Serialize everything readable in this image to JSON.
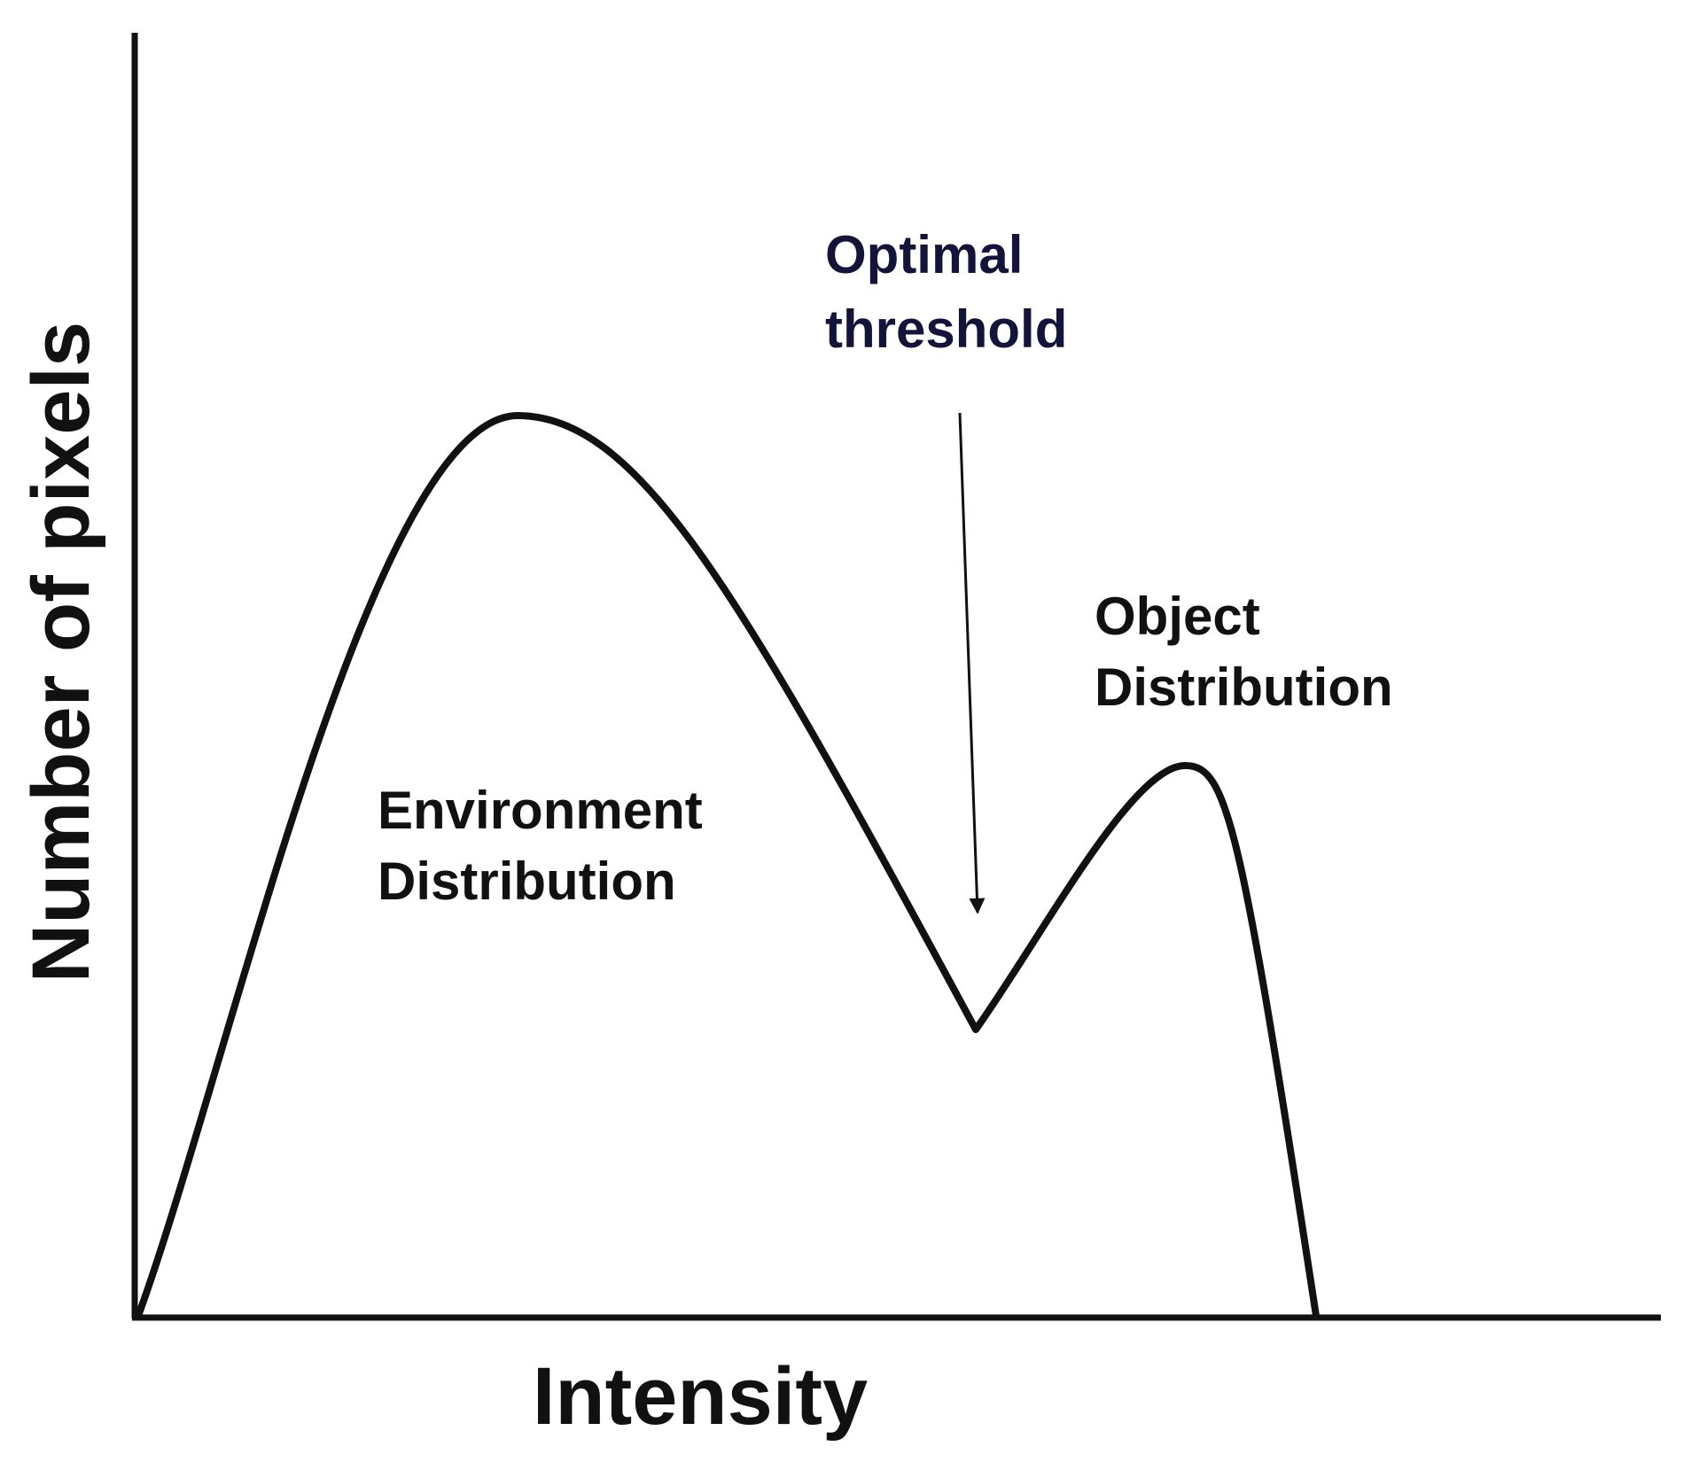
{
  "axes": {
    "y_label": "Number of pixels",
    "x_label": "Intensity"
  },
  "annotations": {
    "threshold": [
      "Optimal",
      "threshold"
    ],
    "object": [
      "Object",
      "Distribution"
    ],
    "environment": [
      "Environment",
      "Distribution"
    ]
  }
}
